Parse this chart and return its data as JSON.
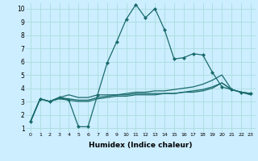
{
  "xlabel": "Humidex (Indice chaleur)",
  "bg_color": "#cceeff",
  "grid_color": "#aadddd",
  "line_color": "#1a6b6b",
  "xlim": [
    -0.5,
    23.5
  ],
  "ylim": [
    0.7,
    10.4
  ],
  "xticks": [
    0,
    1,
    2,
    3,
    4,
    5,
    6,
    7,
    8,
    9,
    10,
    11,
    12,
    13,
    14,
    15,
    16,
    17,
    18,
    19,
    20,
    21,
    22,
    23
  ],
  "yticks": [
    1,
    2,
    3,
    4,
    5,
    6,
    7,
    8,
    9,
    10
  ],
  "series": [
    [
      1.5,
      3.2,
      3.0,
      3.3,
      3.1,
      1.1,
      1.1,
      3.5,
      5.9,
      7.5,
      9.2,
      10.3,
      9.3,
      10.0,
      8.4,
      6.2,
      6.3,
      6.6,
      6.5,
      5.2,
      4.1,
      3.9,
      3.7,
      3.6
    ],
    [
      1.5,
      3.2,
      3.0,
      3.3,
      3.5,
      3.3,
      3.3,
      3.5,
      3.5,
      3.5,
      3.5,
      3.6,
      3.6,
      3.6,
      3.6,
      3.6,
      3.7,
      3.7,
      3.8,
      4.0,
      4.4,
      3.9,
      3.7,
      3.6
    ],
    [
      1.5,
      3.2,
      3.0,
      3.3,
      3.2,
      3.1,
      3.1,
      3.3,
      3.4,
      3.5,
      3.6,
      3.7,
      3.7,
      3.8,
      3.8,
      3.9,
      4.0,
      4.1,
      4.3,
      4.6,
      5.0,
      3.9,
      3.7,
      3.6
    ],
    [
      1.5,
      3.2,
      3.0,
      3.2,
      3.1,
      3.0,
      3.0,
      3.2,
      3.3,
      3.4,
      3.4,
      3.5,
      3.5,
      3.5,
      3.6,
      3.6,
      3.7,
      3.8,
      3.9,
      4.1,
      4.4,
      3.9,
      3.7,
      3.5
    ]
  ]
}
